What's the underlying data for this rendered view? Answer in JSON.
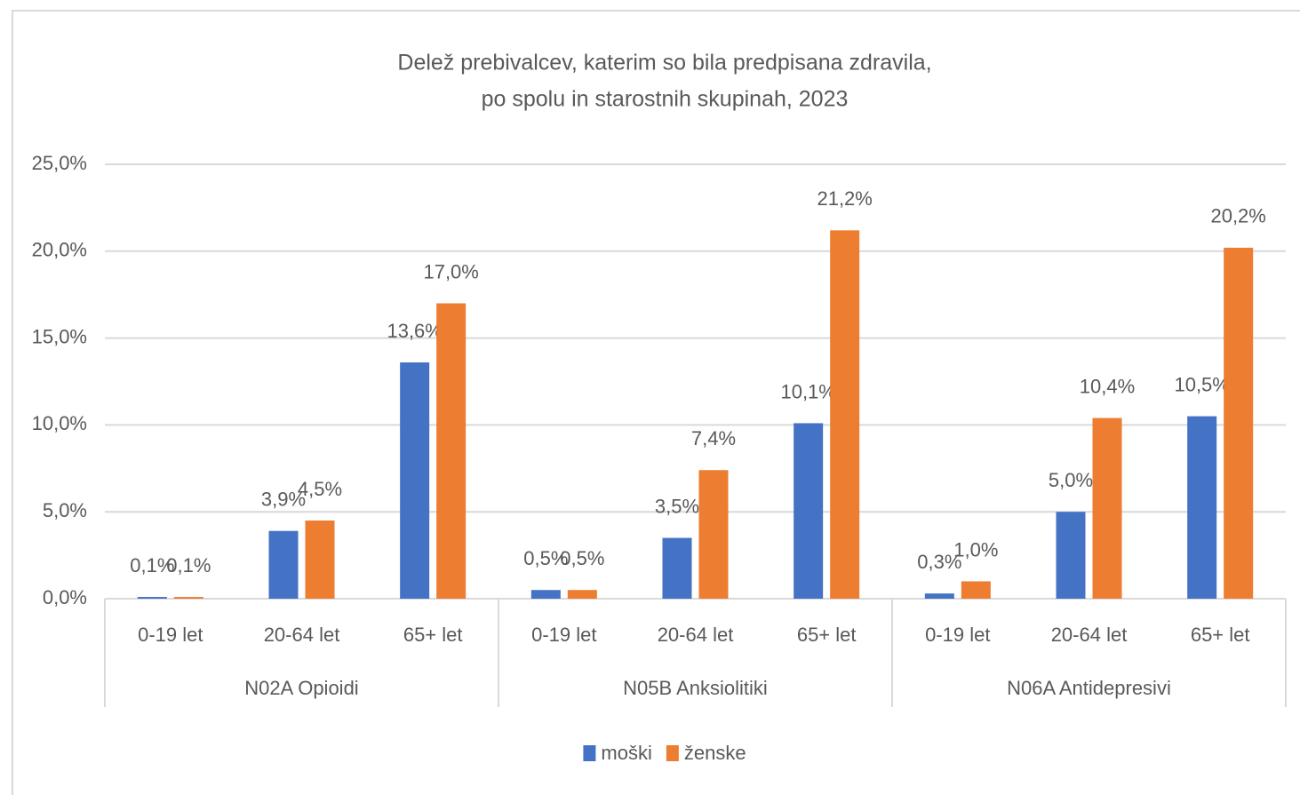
{
  "chart_data": {
    "type": "bar",
    "title": [
      "Delež prebivalcev, katerim so bila predpisana zdravila,",
      "po spolu in starostnih skupinah, 2023"
    ],
    "categories": [
      "0-19 let",
      "20-64 let",
      "65+ let",
      "0-19 let",
      "20-64 let",
      "65+ let",
      "0-19 let",
      "20-64 let",
      "65+ let"
    ],
    "category_groups": [
      "N02A Opioidi",
      "N05B Anksiolitiki",
      "N06A Antidepresivi"
    ],
    "series": [
      {
        "name": "moški",
        "color": "#4472c4",
        "values": [
          0.1,
          3.9,
          13.6,
          0.5,
          3.5,
          10.1,
          0.3,
          5.0,
          10.5
        ],
        "value_labels": [
          "0,1%",
          "3,9%",
          "13,6%",
          "0,5%",
          "3,5%",
          "10,1%",
          "0,3%",
          "5,0%",
          "10,5%"
        ]
      },
      {
        "name": "ženske",
        "color": "#ed7d31",
        "values": [
          0.1,
          4.5,
          17.0,
          0.5,
          7.4,
          21.2,
          1.0,
          10.4,
          20.2
        ],
        "value_labels": [
          "0,1%",
          "4,5%",
          "17,0%",
          "0,5%",
          "7,4%",
          "21,2%",
          "1,0%",
          "10,4%",
          "20,2%"
        ]
      }
    ],
    "ylim": [
      0,
      25
    ],
    "yticks": [
      {
        "value": 0,
        "label": "0,0%"
      },
      {
        "value": 5,
        "label": "5,0%"
      },
      {
        "value": 10,
        "label": "10,0%"
      },
      {
        "value": 15,
        "label": "15,0%"
      },
      {
        "value": 20,
        "label": "20,0%"
      },
      {
        "value": 25,
        "label": "25,0%"
      }
    ],
    "grid": true,
    "legend": "bottom"
  }
}
